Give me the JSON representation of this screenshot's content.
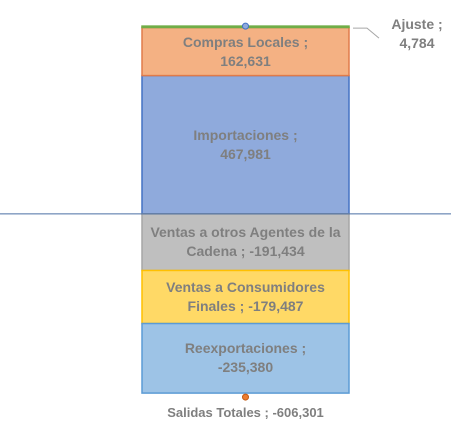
{
  "chart_data": {
    "type": "bar",
    "stacked": true,
    "categories": [
      null
    ],
    "series": [
      {
        "color": "#8faadc",
        "values": [
          467981
        ],
        "value_labels": [
          "Importaciones ; 467,981"
        ]
      },
      {
        "color": "#f4b183",
        "values": [
          162631
        ],
        "value_labels": [
          "Compras Locales ; 162,631"
        ]
      },
      {
        "color": "#70ad47",
        "values": [
          4784
        ],
        "value_labels": [
          "Ajuste ; 4,784"
        ]
      },
      {
        "color": "#bfbfbf",
        "values": [
          -191434
        ],
        "value_labels": [
          "Ventas a otros Agentes de la Cadena ; -191,434"
        ]
      },
      {
        "color": "#ffd966",
        "values": [
          -179487
        ],
        "value_labels": [
          "Ventas a Consumidores Finales ; -179,487"
        ]
      },
      {
        "color": "#9dc3e6",
        "values": [
          -235380
        ],
        "value_labels": [
          "Reexportaciones ; -235,380"
        ]
      }
    ],
    "annotation": "Salidas Totales ; -606,301",
    "ylim": [
      -650000,
      700000
    ],
    "yticks": [
      0
    ],
    "grid": false
  }
}
